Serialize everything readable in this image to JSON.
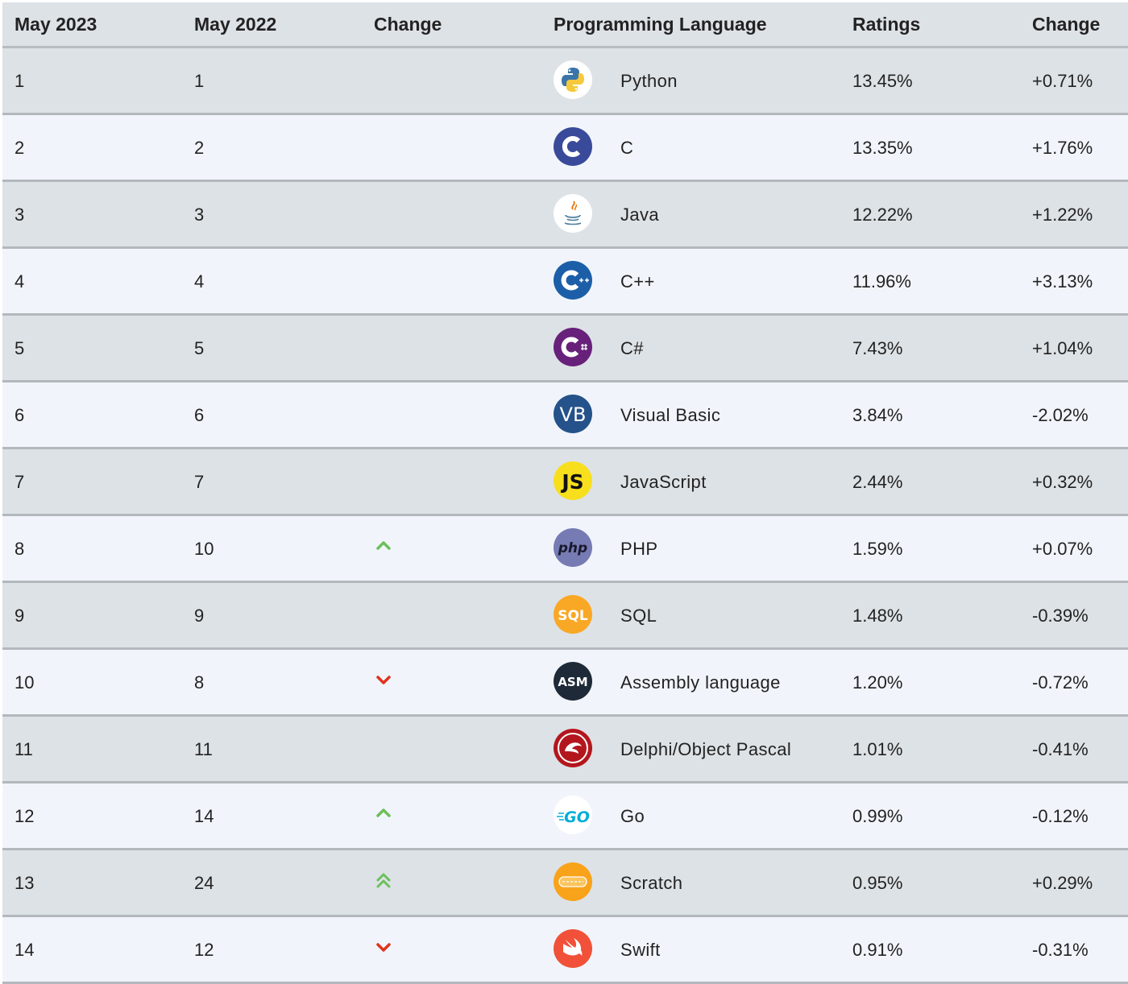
{
  "columns": {
    "may2023": "May 2023",
    "may2022": "May 2022",
    "change": "Change",
    "language": "Programming Language",
    "ratings": "Ratings",
    "delta": "Change"
  },
  "rows": [
    {
      "rank2023": "1",
      "rank2022": "1",
      "trend": "none",
      "icon": "python-icon",
      "language": "Python",
      "rating": "13.45%",
      "change": "+0.71%"
    },
    {
      "rank2023": "2",
      "rank2022": "2",
      "trend": "none",
      "icon": "c-icon",
      "language": "C",
      "rating": "13.35%",
      "change": "+1.76%"
    },
    {
      "rank2023": "3",
      "rank2022": "3",
      "trend": "none",
      "icon": "java-icon",
      "language": "Java",
      "rating": "12.22%",
      "change": "+1.22%"
    },
    {
      "rank2023": "4",
      "rank2022": "4",
      "trend": "none",
      "icon": "cpp-icon",
      "language": "C++",
      "rating": "11.96%",
      "change": "+3.13%"
    },
    {
      "rank2023": "5",
      "rank2022": "5",
      "trend": "none",
      "icon": "csharp-icon",
      "language": "C#",
      "rating": "7.43%",
      "change": "+1.04%"
    },
    {
      "rank2023": "6",
      "rank2022": "6",
      "trend": "none",
      "icon": "visual-basic-icon",
      "language": "Visual Basic",
      "rating": "3.84%",
      "change": "-2.02%"
    },
    {
      "rank2023": "7",
      "rank2022": "7",
      "trend": "none",
      "icon": "javascript-icon",
      "language": "JavaScript",
      "rating": "2.44%",
      "change": "+0.32%"
    },
    {
      "rank2023": "8",
      "rank2022": "10",
      "trend": "up",
      "icon": "php-icon",
      "language": "PHP",
      "rating": "1.59%",
      "change": "+0.07%"
    },
    {
      "rank2023": "9",
      "rank2022": "9",
      "trend": "none",
      "icon": "sql-icon",
      "language": "SQL",
      "rating": "1.48%",
      "change": "-0.39%"
    },
    {
      "rank2023": "10",
      "rank2022": "8",
      "trend": "down",
      "icon": "assembly-icon",
      "language": "Assembly language",
      "rating": "1.20%",
      "change": "-0.72%"
    },
    {
      "rank2023": "11",
      "rank2022": "11",
      "trend": "none",
      "icon": "delphi-icon",
      "language": "Delphi/Object Pascal",
      "rating": "1.01%",
      "change": "-0.41%"
    },
    {
      "rank2023": "12",
      "rank2022": "14",
      "trend": "up",
      "icon": "go-icon",
      "language": "Go",
      "rating": "0.99%",
      "change": "-0.12%"
    },
    {
      "rank2023": "13",
      "rank2022": "24",
      "trend": "double-up",
      "icon": "scratch-icon",
      "language": "Scratch",
      "rating": "0.95%",
      "change": "+0.29%"
    },
    {
      "rank2023": "14",
      "rank2022": "12",
      "trend": "down",
      "icon": "swift-icon",
      "language": "Swift",
      "rating": "0.91%",
      "change": "-0.31%"
    }
  ],
  "icon_text": {
    "visual-basic-icon": "VB",
    "javascript-icon": "JS",
    "php-icon": "php",
    "sql-icon": "SQL",
    "assembly-icon": "ASM",
    "go-icon": "GO"
  },
  "colors": {
    "up": "#6cbf5b",
    "down": "#e0331c",
    "row_odd": "#dde2e6",
    "row_even": "#f1f5fb",
    "header_bg": "#dde2e7"
  }
}
